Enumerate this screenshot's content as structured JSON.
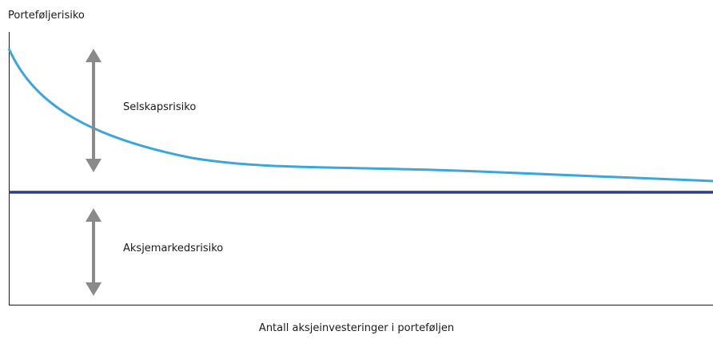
{
  "diagram": {
    "y_axis_label": "Porteføljerisiko",
    "x_axis_label": "Antall aksjeinvesteringer i porteføljen",
    "upper_zone_label": "Selskapsrisiko",
    "lower_zone_label": "Aksjemarkedsrisiko",
    "colors": {
      "total_risk_curve": "#3aa6dc",
      "market_risk_line": "#2e3a8c",
      "arrows": "#8a8a8a",
      "axes": "#1a1a1a"
    }
  }
}
